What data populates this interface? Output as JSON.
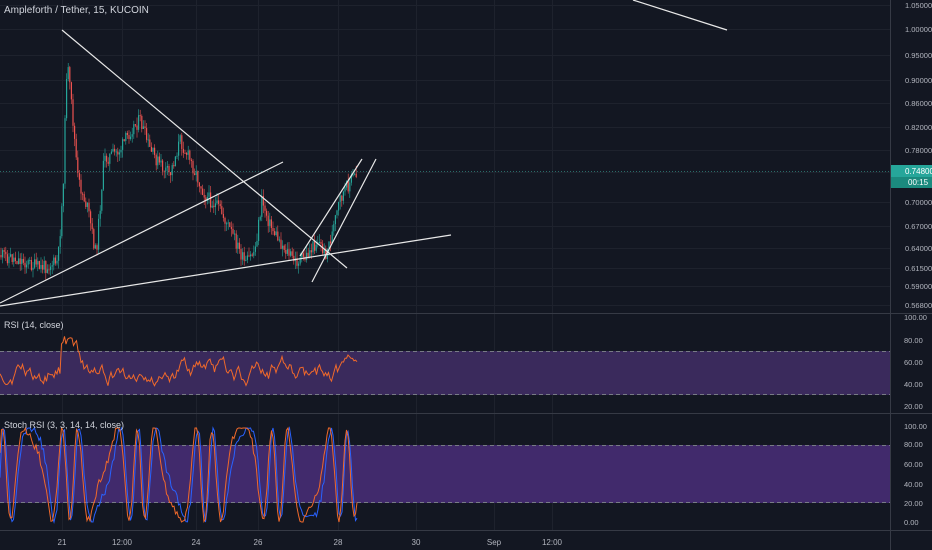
{
  "header": {
    "symbol_title": "Ampleforth / Tether, 15, KUCOIN"
  },
  "price_axis": {
    "ticks": [
      "1.05000",
      "1.00000",
      "0.95000",
      "0.90000",
      "0.86000",
      "0.82000",
      "0.78000",
      "0.74800",
      "0.70000",
      "0.67000",
      "0.64000",
      "0.61500",
      "0.59000",
      "0.56800"
    ],
    "current_price": "0.74800",
    "countdown": "00:15"
  },
  "rsi": {
    "title": "RSI (14, close)",
    "ticks": [
      "100.00",
      "80.00",
      "60.00",
      "40.00",
      "20.00"
    ]
  },
  "stoch": {
    "title": "Stoch RSI (3, 3, 14, 14, close)",
    "ticks": [
      "100.00",
      "80.00",
      "60.00",
      "40.00",
      "20.00",
      "0.00"
    ]
  },
  "time_axis": {
    "labels": [
      "21",
      "12:00",
      "24",
      "26",
      "28",
      "30",
      "Sep",
      "12:00"
    ]
  },
  "colors": {
    "background": "#131722",
    "up": "#26a69a",
    "down": "#ef5350",
    "rsi_line": "#f0692b",
    "band_fill": "#3a2a5c",
    "price_badge": "#26a69a",
    "countdown_badge": "#1b8a7e"
  }
}
